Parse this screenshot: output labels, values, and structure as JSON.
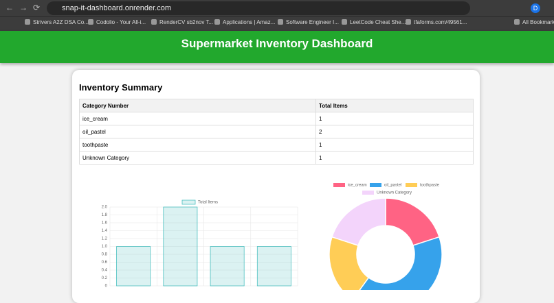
{
  "browser": {
    "url": "snap-it-dashboard.onrender.com",
    "profile": "D",
    "bookmarks": [
      "Strivers A2Z DSA Co...",
      "Codolio - Your All-i...",
      "RenderCV sb2nov T...",
      "Applications | Amaz...",
      "Software Engineer I...",
      "LeetCode Cheat She...",
      "tfaforms.com/49561..."
    ],
    "all_bookmarks": "All Bookmarks"
  },
  "header": {
    "title": "Supermarket Inventory Dashboard"
  },
  "summary": {
    "title": "Inventory Summary",
    "table": {
      "columns": [
        "Category Number",
        "Total Items"
      ],
      "rows": [
        [
          "ice_cream",
          1
        ],
        [
          "oil_pastel",
          2
        ],
        [
          "toothpaste",
          1
        ],
        [
          "Unknown Category",
          1
        ]
      ]
    }
  },
  "chart_data": [
    {
      "type": "bar",
      "series": [
        {
          "name": "Total Items",
          "color": "#4bc0c0",
          "values": [
            1,
            2,
            1,
            1
          ]
        }
      ],
      "ylim": [
        0,
        2
      ],
      "yticks": [
        0,
        0.2,
        0.4,
        0.6,
        0.8,
        {
          "value": 1,
          "label": "1.0"
        },
        1.2,
        1.4,
        1.6,
        1.8,
        {
          "value": 2,
          "label": "2.0"
        }
      ],
      "grid": true,
      "legend": "top"
    },
    {
      "type": "doughnut",
      "categories": [
        "ice_cream",
        "oil_pastel",
        "toothpaste",
        "Unknown Category"
      ],
      "values": [
        1,
        2,
        1,
        1
      ],
      "colors": [
        "#ff6384",
        "#36a2eb",
        "#ffcd56",
        "#f3d4fb"
      ],
      "legend": "top"
    }
  ]
}
